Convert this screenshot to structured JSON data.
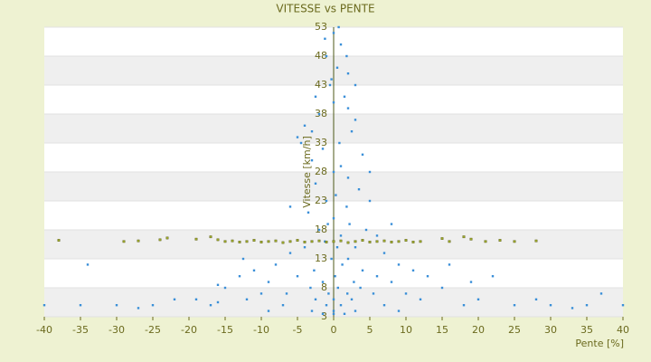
{
  "chart_data": {
    "type": "scatter",
    "title": "VITESSE vs PENTE",
    "x_label": "Pente [%]",
    "y_label": "Vitesse [km/h]",
    "xlim": [
      -40,
      40
    ],
    "xticks": [
      -40,
      -35,
      -30,
      -25,
      -20,
      -15,
      -10,
      -5,
      0,
      5,
      10,
      15,
      20,
      25,
      30,
      35,
      40
    ],
    "ylim": [
      3,
      53
    ],
    "yticks": [
      3,
      8,
      13,
      18,
      23,
      28,
      33,
      38,
      43,
      48,
      53
    ],
    "grid": true,
    "series": [
      {
        "color": "#3a8fd8",
        "x": [
          0,
          1,
          -1,
          0.5,
          2,
          -0.5,
          1.5,
          0,
          -2,
          3,
          -4,
          -5,
          2.5,
          0.8,
          -1.5,
          4,
          -3,
          1,
          0,
          2,
          -2.5,
          3.5,
          0.3,
          -1,
          5,
          1.8,
          -3.5,
          0,
          2.2,
          -0.8,
          4.5,
          -2,
          1,
          6,
          -1.2,
          0.5,
          3,
          -4,
          7,
          -6,
          2,
          -0.3,
          9,
          -8,
          1.2,
          4,
          -2.7,
          11,
          -11,
          0.2,
          6,
          -5,
          13,
          -13,
          2.8,
          -1.5,
          8,
          -9,
          0.6,
          15,
          -15,
          3.7,
          -3.2,
          10,
          -10,
          1.9,
          -0.7,
          5.5,
          -6.5,
          20,
          -19,
          0,
          2.5,
          -2.5,
          12,
          -12,
          1,
          -1,
          25,
          -25,
          30,
          -30,
          35,
          -35,
          40,
          -40,
          18,
          -17,
          7,
          -7,
          0,
          3,
          -3,
          9,
          -9,
          0,
          1.5,
          -1.5,
          37,
          -34,
          22,
          -16,
          28,
          -27,
          33,
          -22,
          16,
          -16,
          19,
          -12.5,
          8,
          -6,
          5,
          -4.5,
          3,
          -2.5,
          1.8,
          -1.2,
          0.7,
          -0.3,
          2,
          -3
        ],
        "values": [
          52,
          50,
          48,
          46,
          45,
          43,
          41,
          40,
          38,
          37,
          36,
          34,
          35,
          33,
          32,
          31,
          30,
          29,
          28,
          27,
          26,
          25,
          24,
          23,
          23,
          22,
          21,
          20,
          19,
          19,
          18,
          18,
          17,
          17,
          16,
          15,
          15,
          15,
          14,
          14,
          13,
          13,
          12,
          12,
          12,
          11,
          11,
          11,
          11,
          10,
          10,
          10,
          10,
          10,
          9,
          9,
          9,
          9,
          8,
          8,
          8,
          8,
          8,
          7,
          7,
          7,
          7,
          7,
          7,
          6,
          6,
          6,
          6,
          6,
          6,
          6,
          5,
          5,
          5,
          5,
          5,
          5,
          5,
          5,
          5,
          5,
          5,
          5,
          5,
          5,
          4,
          4,
          4,
          4,
          4,
          3.5,
          3.5,
          3.5,
          7,
          12,
          10,
          5.5,
          6,
          4.5,
          4.5,
          6,
          12,
          8.5,
          9,
          13,
          19,
          22,
          28,
          33,
          43,
          41,
          48,
          51,
          53,
          44,
          39,
          35
        ]
      },
      {
        "color": "#9aa82a",
        "x": [
          -38,
          -29,
          -27,
          -24,
          -23,
          -19,
          -17,
          -16,
          -15,
          -14,
          -13,
          -12,
          -11,
          -10,
          -9,
          -8,
          -7,
          -6,
          -5,
          -4,
          -3,
          -2,
          -1,
          0,
          1,
          2,
          3,
          4,
          5,
          6,
          7,
          8,
          9,
          10,
          11,
          12,
          15,
          16,
          18,
          19,
          21,
          23,
          25,
          28
        ],
        "values": [
          16.2,
          16,
          16.1,
          16.3,
          16.6,
          16.4,
          16.8,
          16.3,
          16,
          16.1,
          15.9,
          16,
          16.2,
          15.9,
          16,
          16.1,
          15.8,
          16,
          16.2,
          15.9,
          16,
          16.1,
          15.9,
          16,
          16.1,
          15.8,
          16,
          16.2,
          15.9,
          16,
          16.1,
          15.9,
          16,
          16.2,
          15.9,
          16,
          16.5,
          16,
          16.8,
          16.4,
          16,
          16.2,
          16,
          16.1
        ]
      }
    ]
  }
}
